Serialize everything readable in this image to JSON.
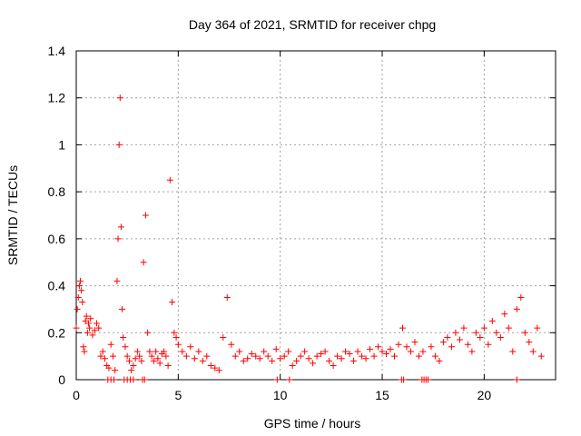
{
  "chart_data": {
    "type": "scatter",
    "title": "Day 364 of 2021, SRMTID for receiver chpg",
    "xlabel": "GPS time / hours",
    "ylabel": "SRMTID / TECUs",
    "xlim": [
      0,
      23.5
    ],
    "ylim": [
      0,
      1.4
    ],
    "xticks": [
      0,
      5,
      10,
      15,
      20
    ],
    "xtick_labels": [
      "0",
      "5",
      "10",
      "15",
      "20"
    ],
    "yticks": [
      0,
      0.2,
      0.4,
      0.6,
      0.8,
      1,
      1.2,
      1.4
    ],
    "ytick_labels": [
      "0",
      "0.2",
      "0.4",
      "0.6",
      "0.8",
      "1",
      "1.2",
      "1.4"
    ],
    "grid": true,
    "marker": "+",
    "color": "#ff0000",
    "series": [
      {
        "name": "SRMTID",
        "x": [
          0.0,
          0.05,
          0.1,
          0.15,
          0.2,
          0.25,
          0.3,
          0.35,
          0.4,
          0.45,
          0.5,
          0.55,
          0.6,
          0.65,
          0.7,
          0.8,
          0.9,
          1.0,
          1.1,
          1.2,
          1.3,
          1.4,
          1.5,
          1.6,
          1.7,
          1.8,
          1.9,
          2.0,
          2.05,
          2.1,
          2.15,
          2.2,
          2.25,
          2.3,
          2.4,
          2.5,
          2.6,
          2.7,
          2.8,
          2.9,
          3.0,
          3.1,
          3.2,
          3.3,
          3.4,
          3.5,
          3.6,
          3.7,
          3.8,
          3.9,
          4.0,
          4.1,
          4.2,
          4.3,
          4.4,
          4.5,
          4.6,
          4.7,
          4.8,
          4.9,
          5.0,
          5.2,
          5.4,
          5.6,
          5.8,
          6.0,
          6.2,
          6.4,
          6.6,
          6.8,
          7.0,
          7.2,
          7.4,
          7.6,
          7.8,
          8.0,
          8.2,
          8.4,
          8.6,
          8.8,
          9.0,
          9.2,
          9.4,
          9.6,
          9.8,
          10.0,
          10.2,
          10.4,
          10.6,
          10.8,
          11.0,
          11.2,
          11.4,
          11.6,
          11.8,
          12.0,
          12.2,
          12.4,
          12.6,
          12.8,
          13.0,
          13.2,
          13.4,
          13.6,
          13.8,
          14.0,
          14.2,
          14.4,
          14.6,
          14.8,
          15.0,
          15.2,
          15.4,
          15.6,
          15.8,
          16.0,
          16.2,
          16.4,
          16.6,
          16.8,
          17.0,
          17.4,
          17.6,
          17.8,
          18.0,
          18.2,
          18.4,
          18.6,
          18.8,
          19.0,
          19.2,
          19.4,
          19.6,
          19.8,
          20.0,
          20.2,
          20.4,
          20.6,
          20.8,
          21.0,
          21.2,
          21.4,
          21.6,
          21.8,
          22.0,
          22.2,
          22.4,
          22.6,
          22.8
        ],
        "y": [
          0.22,
          0.3,
          0.35,
          0.4,
          0.42,
          0.38,
          0.33,
          0.14,
          0.12,
          0.25,
          0.27,
          0.2,
          0.24,
          0.22,
          0.26,
          0.19,
          0.21,
          0.24,
          0.22,
          0.1,
          0.12,
          0.09,
          0.06,
          0.05,
          0.15,
          0.1,
          0.04,
          0.42,
          0.6,
          1.0,
          1.2,
          0.65,
          0.3,
          0.18,
          0.14,
          0.1,
          0.08,
          0.04,
          0.06,
          0.09,
          0.12,
          0.1,
          0.08,
          0.5,
          0.7,
          0.2,
          0.12,
          0.1,
          0.08,
          0.12,
          0.09,
          0.07,
          0.11,
          0.12,
          0.1,
          0.06,
          0.85,
          0.33,
          0.2,
          0.18,
          0.15,
          0.12,
          0.1,
          0.14,
          0.09,
          0.12,
          0.08,
          0.1,
          0.06,
          0.05,
          0.04,
          0.18,
          0.35,
          0.15,
          0.1,
          0.12,
          0.08,
          0.09,
          0.11,
          0.1,
          0.09,
          0.12,
          0.1,
          0.08,
          0.13,
          0.09,
          0.1,
          0.12,
          0.06,
          0.08,
          0.1,
          0.12,
          0.09,
          0.07,
          0.1,
          0.11,
          0.12,
          0.08,
          0.06,
          0.1,
          0.09,
          0.12,
          0.11,
          0.08,
          0.12,
          0.1,
          0.09,
          0.13,
          0.1,
          0.14,
          0.12,
          0.11,
          0.13,
          0.1,
          0.15,
          0.22,
          0.14,
          0.12,
          0.16,
          0.1,
          0.12,
          0.14,
          0.1,
          0.08,
          0.16,
          0.18,
          0.14,
          0.2,
          0.17,
          0.22,
          0.15,
          0.12,
          0.2,
          0.18,
          0.22,
          0.15,
          0.25,
          0.2,
          0.18,
          0.28,
          0.22,
          0.12,
          0.3,
          0.35,
          0.2,
          0.16,
          0.12,
          0.22,
          0.1
        ],
        "zeros_x": [
          1.55,
          1.7,
          1.85,
          2.35,
          2.5,
          2.65,
          2.8,
          3.25,
          3.35,
          9.85,
          10.45,
          15.95,
          16.05,
          16.95,
          17.05,
          17.15,
          17.25,
          21.6
        ]
      }
    ]
  }
}
